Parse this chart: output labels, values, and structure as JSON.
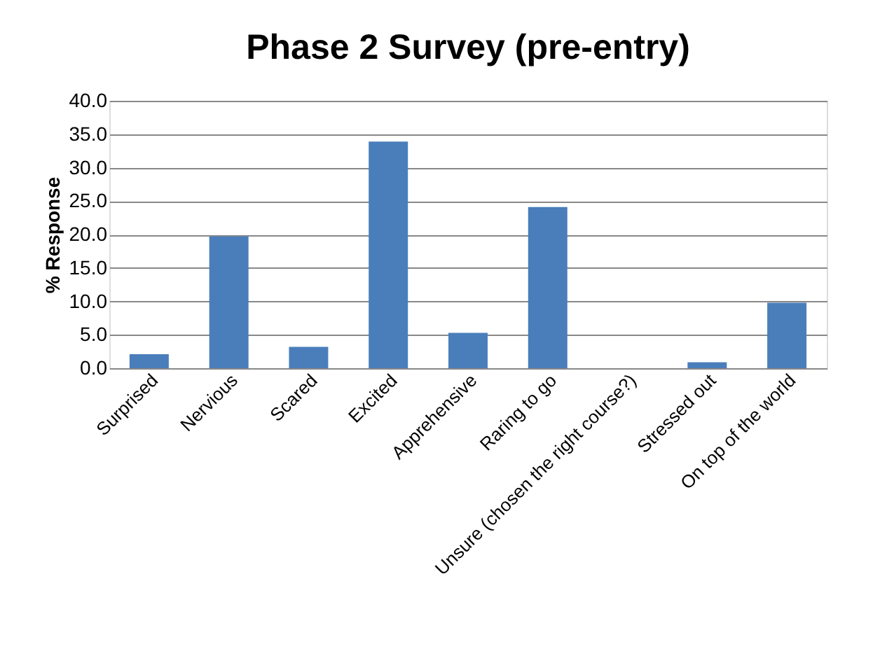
{
  "chart_data": {
    "type": "bar",
    "title": "Phase 2 Survey (pre-entry)",
    "ylabel": "% Response",
    "categories": [
      "Surprised",
      "Nervious",
      "Scared",
      "Excited",
      "Apprehensive",
      "Raring to go",
      "Unsure (chosen the right course?)",
      "Stressed out",
      "On top of the world"
    ],
    "values": [
      2.1,
      19.7,
      3.2,
      33.9,
      5.3,
      24.1,
      0,
      0.9,
      9.8
    ],
    "color": "#4a7ebb",
    "ylim": [
      0,
      40
    ],
    "yticks": [
      {
        "value": 0,
        "label": "0.0"
      },
      {
        "value": 5,
        "label": "5.0"
      },
      {
        "value": 10,
        "label": "10.0"
      },
      {
        "value": 15,
        "label": "15.0"
      },
      {
        "value": 20,
        "label": "20.0"
      },
      {
        "value": 25,
        "label": "25.0"
      },
      {
        "value": 30,
        "label": "30.0"
      },
      {
        "value": 35,
        "label": "35.0"
      },
      {
        "value": 40,
        "label": "40.0"
      }
    ],
    "grid": "y"
  }
}
